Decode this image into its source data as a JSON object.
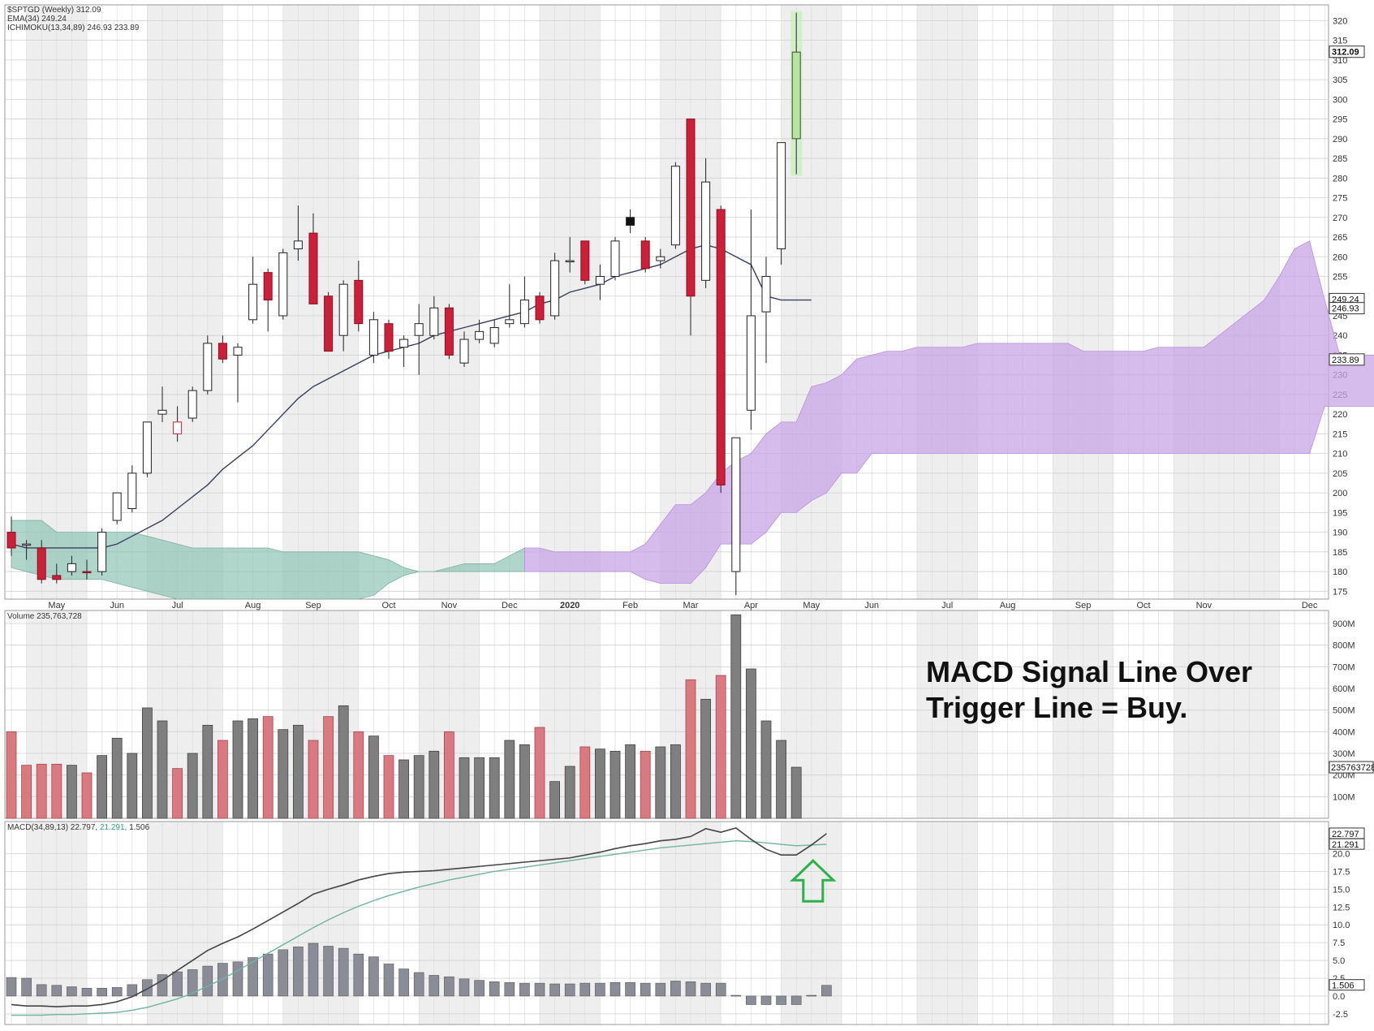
{
  "chart_data": {
    "type": "candlestick-multi-panel",
    "price_panel": {
      "legend": [
        "$SPTGD (Weekly) 312.09",
        "EMA(34) 249.24",
        "ICHIMOKU(13,34,89) 246.93 233.89"
      ],
      "y_ticks": [
        175,
        180,
        185,
        190,
        195,
        200,
        205,
        210,
        215,
        220,
        225,
        230,
        235,
        240,
        245,
        250,
        255,
        260,
        265,
        270,
        275,
        280,
        285,
        290,
        295,
        300,
        305,
        310,
        315,
        320
      ],
      "ylim": [
        173,
        324
      ],
      "value_tags": [
        {
          "label": "312.09",
          "value": 312.09,
          "emphasis": true
        },
        {
          "label": "249.24",
          "value": 249.24,
          "emphasis": false
        },
        {
          "label": "246.93",
          "value": 246.93,
          "emphasis": false
        },
        {
          "label": "233.89",
          "value": 233.89,
          "emphasis": false
        }
      ],
      "candles": [
        {
          "open": 190,
          "high": 194,
          "low": 184,
          "close": 186,
          "color": "red"
        },
        {
          "open": 187,
          "high": 188,
          "low": 183,
          "close": 187,
          "color": "white"
        },
        {
          "open": 186,
          "high": 188,
          "low": 177,
          "close": 178,
          "color": "red"
        },
        {
          "open": 179,
          "high": 182,
          "low": 177,
          "close": 178,
          "color": "red"
        },
        {
          "open": 180,
          "high": 184,
          "low": 179,
          "close": 182,
          "color": "white"
        },
        {
          "open": 180,
          "high": 183,
          "low": 178,
          "close": 180,
          "color": "red"
        },
        {
          "open": 180,
          "high": 191,
          "low": 179,
          "close": 190,
          "color": "white"
        },
        {
          "open": 193,
          "high": 200,
          "low": 192,
          "close": 200,
          "color": "white"
        },
        {
          "open": 196,
          "high": 207,
          "low": 195,
          "close": 205,
          "color": "white"
        },
        {
          "open": 205,
          "high": 218,
          "low": 204,
          "close": 218,
          "color": "white"
        },
        {
          "open": 220,
          "high": 227,
          "low": 218,
          "close": 221,
          "color": "white"
        },
        {
          "open": 218,
          "high": 222,
          "low": 213,
          "close": 215,
          "color": "hollow-red"
        },
        {
          "open": 219,
          "high": 227,
          "low": 218,
          "close": 226,
          "color": "white"
        },
        {
          "open": 226,
          "high": 240,
          "low": 225,
          "close": 238,
          "color": "white"
        },
        {
          "open": 238,
          "high": 240,
          "low": 233,
          "close": 234,
          "color": "red"
        },
        {
          "open": 235,
          "high": 238,
          "low": 223,
          "close": 237,
          "color": "white"
        },
        {
          "open": 244,
          "high": 260,
          "low": 243,
          "close": 253,
          "color": "white"
        },
        {
          "open": 256,
          "high": 257,
          "low": 241,
          "close": 249,
          "color": "red"
        },
        {
          "open": 245,
          "high": 262,
          "low": 244,
          "close": 261,
          "color": "white"
        },
        {
          "open": 262,
          "high": 273,
          "low": 259,
          "close": 264,
          "color": "white"
        },
        {
          "open": 266,
          "high": 271,
          "low": 248,
          "close": 248,
          "color": "red"
        },
        {
          "open": 250,
          "high": 251,
          "low": 236,
          "close": 236,
          "color": "red"
        },
        {
          "open": 240,
          "high": 254,
          "low": 236,
          "close": 253,
          "color": "white"
        },
        {
          "open": 254,
          "high": 259,
          "low": 241,
          "close": 243,
          "color": "red"
        },
        {
          "open": 235,
          "high": 246,
          "low": 233,
          "close": 244,
          "color": "white"
        },
        {
          "open": 243,
          "high": 244,
          "low": 234,
          "close": 236,
          "color": "red"
        },
        {
          "open": 237,
          "high": 240,
          "low": 232,
          "close": 239,
          "color": "white"
        },
        {
          "open": 240,
          "high": 248,
          "low": 230,
          "close": 243,
          "color": "white"
        },
        {
          "open": 240,
          "high": 250,
          "low": 239,
          "close": 247,
          "color": "white"
        },
        {
          "open": 247,
          "high": 248,
          "low": 234,
          "close": 235,
          "color": "red"
        },
        {
          "open": 233,
          "high": 241,
          "low": 232,
          "close": 239,
          "color": "white"
        },
        {
          "open": 239,
          "high": 244,
          "low": 238,
          "close": 241,
          "color": "white"
        },
        {
          "open": 238,
          "high": 244,
          "low": 237,
          "close": 242,
          "color": "white"
        },
        {
          "open": 243,
          "high": 253,
          "low": 242,
          "close": 244,
          "color": "white"
        },
        {
          "open": 243,
          "high": 255,
          "low": 242,
          "close": 249,
          "color": "white"
        },
        {
          "open": 250,
          "high": 251,
          "low": 243,
          "close": 244,
          "color": "red"
        },
        {
          "open": 245,
          "high": 261,
          "low": 244,
          "close": 259,
          "color": "white"
        },
        {
          "open": 259,
          "high": 265,
          "low": 256,
          "close": 259,
          "color": "white"
        },
        {
          "open": 264,
          "high": 264,
          "low": 253,
          "close": 254,
          "color": "red"
        },
        {
          "open": 253,
          "high": 258,
          "low": 249,
          "close": 255,
          "color": "white"
        },
        {
          "open": 255,
          "high": 265,
          "low": 254,
          "close": 264,
          "color": "white"
        },
        {
          "open": 270,
          "high": 272,
          "low": 266,
          "close": 268,
          "color": "black"
        },
        {
          "open": 264,
          "high": 265,
          "low": 256,
          "close": 257,
          "color": "red"
        },
        {
          "open": 259,
          "high": 262,
          "low": 257,
          "close": 260,
          "color": "white"
        },
        {
          "open": 263,
          "high": 284,
          "low": 262,
          "close": 283,
          "color": "white"
        },
        {
          "open": 295,
          "high": 295,
          "low": 240,
          "close": 250,
          "color": "red"
        },
        {
          "open": 254,
          "high": 285,
          "low": 252,
          "close": 279,
          "color": "white"
        },
        {
          "open": 272,
          "high": 273,
          "low": 200,
          "close": 202,
          "color": "red"
        },
        {
          "open": 180,
          "high": 214,
          "low": 174,
          "close": 214,
          "color": "white"
        },
        {
          "open": 221,
          "high": 272,
          "low": 216,
          "close": 245,
          "color": "white"
        },
        {
          "open": 246,
          "high": 260,
          "low": 233,
          "close": 255,
          "color": "white"
        },
        {
          "open": 262,
          "high": 289,
          "low": 258,
          "close": 289,
          "color": "white"
        },
        {
          "open": 290,
          "high": 322,
          "low": 281,
          "close": 312,
          "color": "green"
        }
      ],
      "ema34": [
        187,
        186,
        186,
        186,
        186,
        186,
        186,
        187,
        189,
        191,
        193,
        196,
        199,
        202,
        206,
        209,
        212,
        216,
        220,
        224,
        227,
        229,
        231,
        233,
        235,
        236,
        237,
        238,
        240,
        241,
        242,
        243,
        244,
        245,
        246,
        248,
        249,
        251,
        252,
        253,
        255,
        256,
        257,
        258,
        260,
        262,
        263,
        262,
        260,
        258,
        250,
        249,
        249,
        249
      ],
      "cloud_upper": [
        193,
        193,
        193,
        190,
        190,
        190,
        190,
        190,
        190,
        189,
        188,
        187,
        186,
        186,
        186,
        186,
        186,
        186,
        185,
        185,
        185,
        185,
        185,
        185,
        184,
        183,
        181,
        180,
        180,
        181,
        182,
        182,
        182,
        184,
        186,
        186,
        185,
        185,
        185,
        185,
        185,
        185,
        187,
        192,
        197,
        197,
        200,
        205,
        208,
        210,
        215,
        218,
        218,
        227,
        228,
        230,
        234,
        235,
        236,
        236,
        237,
        237,
        237,
        237,
        238,
        238,
        238,
        238,
        238,
        238,
        238,
        236,
        236,
        236,
        236,
        236,
        237,
        237,
        237,
        237,
        240,
        243,
        246,
        249,
        255,
        262,
        264,
        249,
        235,
        235,
        235,
        235,
        235,
        246
      ],
      "cloud_lower": [
        181,
        180,
        179,
        178,
        178,
        178,
        178,
        177,
        176,
        175,
        174,
        173,
        173,
        173,
        173,
        173,
        173,
        173,
        173,
        173,
        173,
        173,
        173,
        173,
        174,
        177,
        179,
        180,
        180,
        180,
        180,
        180,
        180,
        180,
        180,
        180,
        180,
        180,
        180,
        180,
        180,
        180,
        178,
        177,
        177,
        177,
        181,
        187,
        187,
        187,
        190,
        195,
        195,
        198,
        200,
        205,
        205,
        210,
        210,
        210,
        210,
        210,
        210,
        210,
        210,
        210,
        210,
        210,
        210,
        210,
        210,
        210,
        210,
        210,
        210,
        210,
        210,
        210,
        210,
        210,
        210,
        210,
        210,
        210,
        210,
        210,
        210,
        222,
        222,
        222,
        222,
        222,
        222,
        232
      ],
      "cloud_color_switch_index": 34
    },
    "x_axis": {
      "labels": [
        "May",
        "Jun",
        "Jul",
        "Aug",
        "Sep",
        "Oct",
        "Nov",
        "Dec",
        "2020",
        "Feb",
        "Mar",
        "Apr",
        "May",
        "Jun",
        "Jul",
        "Aug",
        "Sep",
        "Oct",
        "Nov",
        "Dec"
      ],
      "label_week": [
        3,
        7,
        11,
        16,
        20,
        25,
        29,
        33,
        37,
        41,
        45,
        49,
        53,
        57,
        62,
        66,
        71,
        75,
        79,
        86
      ]
    },
    "volume_panel": {
      "legend": "Volume 235,763,728",
      "y_ticks": [
        "100M",
        "200M",
        "300M",
        "400M",
        "500M",
        "600M",
        "700M",
        "800M",
        "900M"
      ],
      "y_tick_values": [
        100,
        200,
        300,
        400,
        500,
        600,
        700,
        800,
        900
      ],
      "ylim": [
        0,
        960
      ],
      "value_tag": "235763728",
      "value_tag_value": 236,
      "values": [
        400,
        245,
        250,
        250,
        245,
        210,
        290,
        370,
        300,
        510,
        450,
        230,
        300,
        430,
        360,
        450,
        460,
        470,
        410,
        430,
        360,
        470,
        520,
        400,
        380,
        290,
        270,
        290,
        310,
        400,
        280,
        280,
        280,
        360,
        340,
        420,
        170,
        240,
        330,
        320,
        310,
        340,
        310,
        330,
        340,
        640,
        550,
        660,
        940,
        690,
        450,
        360,
        236
      ],
      "colors": [
        "r",
        "r",
        "r",
        "r",
        "g",
        "r",
        "g",
        "g",
        "g",
        "g",
        "g",
        "r",
        "g",
        "g",
        "r",
        "g",
        "g",
        "r",
        "g",
        "g",
        "r",
        "r",
        "g",
        "r",
        "g",
        "r",
        "g",
        "g",
        "g",
        "r",
        "g",
        "g",
        "g",
        "g",
        "g",
        "r",
        "g",
        "g",
        "r",
        "g",
        "g",
        "g",
        "r",
        "g",
        "g",
        "r",
        "g",
        "r",
        "g",
        "g",
        "g",
        "g",
        "g"
      ]
    },
    "macd_panel": {
      "legend": [
        "MACD(34,89,13) 22.797, ",
        "21.291, ",
        "1.506"
      ],
      "y_ticks": [
        "-2.5",
        "0.0",
        "2.5",
        "5.0",
        "7.5",
        "10.0",
        "12.5",
        "15.0",
        "17.5",
        "20.0"
      ],
      "y_tick_values": [
        -2.5,
        0,
        2.5,
        5,
        7.5,
        10,
        12.5,
        15,
        17.5,
        20
      ],
      "ylim": [
        -4,
        24.5
      ],
      "value_tags": [
        {
          "label": "22.797",
          "value": 22.797
        },
        {
          "label": "21.291",
          "value": 21.291
        },
        {
          "label": "1.506",
          "value": 1.506
        }
      ],
      "macd_line": [
        -1.2,
        -1.4,
        -1.4,
        -1.5,
        -1.4,
        -1.4,
        -1.2,
        -0.8,
        -0.1,
        1.0,
        2.2,
        3.6,
        5.0,
        6.4,
        7.4,
        8.3,
        9.4,
        10.6,
        11.8,
        13.0,
        14.3,
        15.0,
        15.6,
        16.3,
        16.8,
        17.2,
        17.4,
        17.5,
        17.6,
        17.8,
        18.0,
        18.2,
        18.4,
        18.6,
        18.8,
        19.0,
        19.2,
        19.4,
        19.8,
        20.2,
        20.7,
        21.1,
        21.4,
        21.8,
        22.0,
        22.4,
        23.5,
        23.0,
        23.6,
        22.0,
        20.6,
        19.8,
        19.8,
        21.2,
        22.8
      ],
      "signal_line": [
        -2.7,
        -2.7,
        -2.7,
        -2.6,
        -2.6,
        -2.5,
        -2.4,
        -2.3,
        -2.0,
        -1.6,
        -1.0,
        -0.4,
        0.4,
        1.4,
        2.4,
        3.6,
        4.8,
        6.0,
        7.2,
        8.4,
        9.6,
        10.7,
        11.7,
        12.6,
        13.4,
        14.1,
        14.7,
        15.3,
        15.8,
        16.3,
        16.7,
        17.1,
        17.5,
        17.8,
        18.1,
        18.4,
        18.7,
        19.0,
        19.3,
        19.6,
        19.9,
        20.2,
        20.5,
        20.8,
        21.0,
        21.2,
        21.4,
        21.6,
        21.8,
        21.7,
        21.5,
        21.3,
        21.1,
        21.2,
        21.3
      ],
      "histogram": [
        2.6,
        2.5,
        1.6,
        1.5,
        1.3,
        1.1,
        1.1,
        1.2,
        1.6,
        2.3,
        3.0,
        3.4,
        3.7,
        4.2,
        4.6,
        4.8,
        5.4,
        5.9,
        6.5,
        6.9,
        7.4,
        7.0,
        6.7,
        5.9,
        5.5,
        4.5,
        3.8,
        3.3,
        2.9,
        2.7,
        2.4,
        2.2,
        2.0,
        1.9,
        1.8,
        1.8,
        1.7,
        1.7,
        1.8,
        1.8,
        1.9,
        1.9,
        1.8,
        1.8,
        2.1,
        2.0,
        1.8,
        1.8,
        0.1,
        -1.2,
        -1.2,
        -1.2,
        -1.2,
        0.1,
        1.5
      ]
    },
    "annotation": {
      "line1": "MACD Signal Line Over",
      "line2": "Trigger Line = Buy.",
      "arrow": "green outlined up-arrow pointing at the MACD crossover",
      "arrow_color": "#2bb24a"
    },
    "colors": {
      "red_candle": "#cc1f3a",
      "white_candle": "#ffffff",
      "green_candle": "#b4e6a2",
      "vol_red": "#d97a80",
      "vol_gray": "#7f7f7f",
      "ema": "#3a3f5c",
      "cloud_green": "#8fc3b3",
      "cloud_purple": "#c8a6e6",
      "macd_line": "#444444",
      "signal_line": "#6fb4a0",
      "hist": "#8a8d96"
    }
  }
}
